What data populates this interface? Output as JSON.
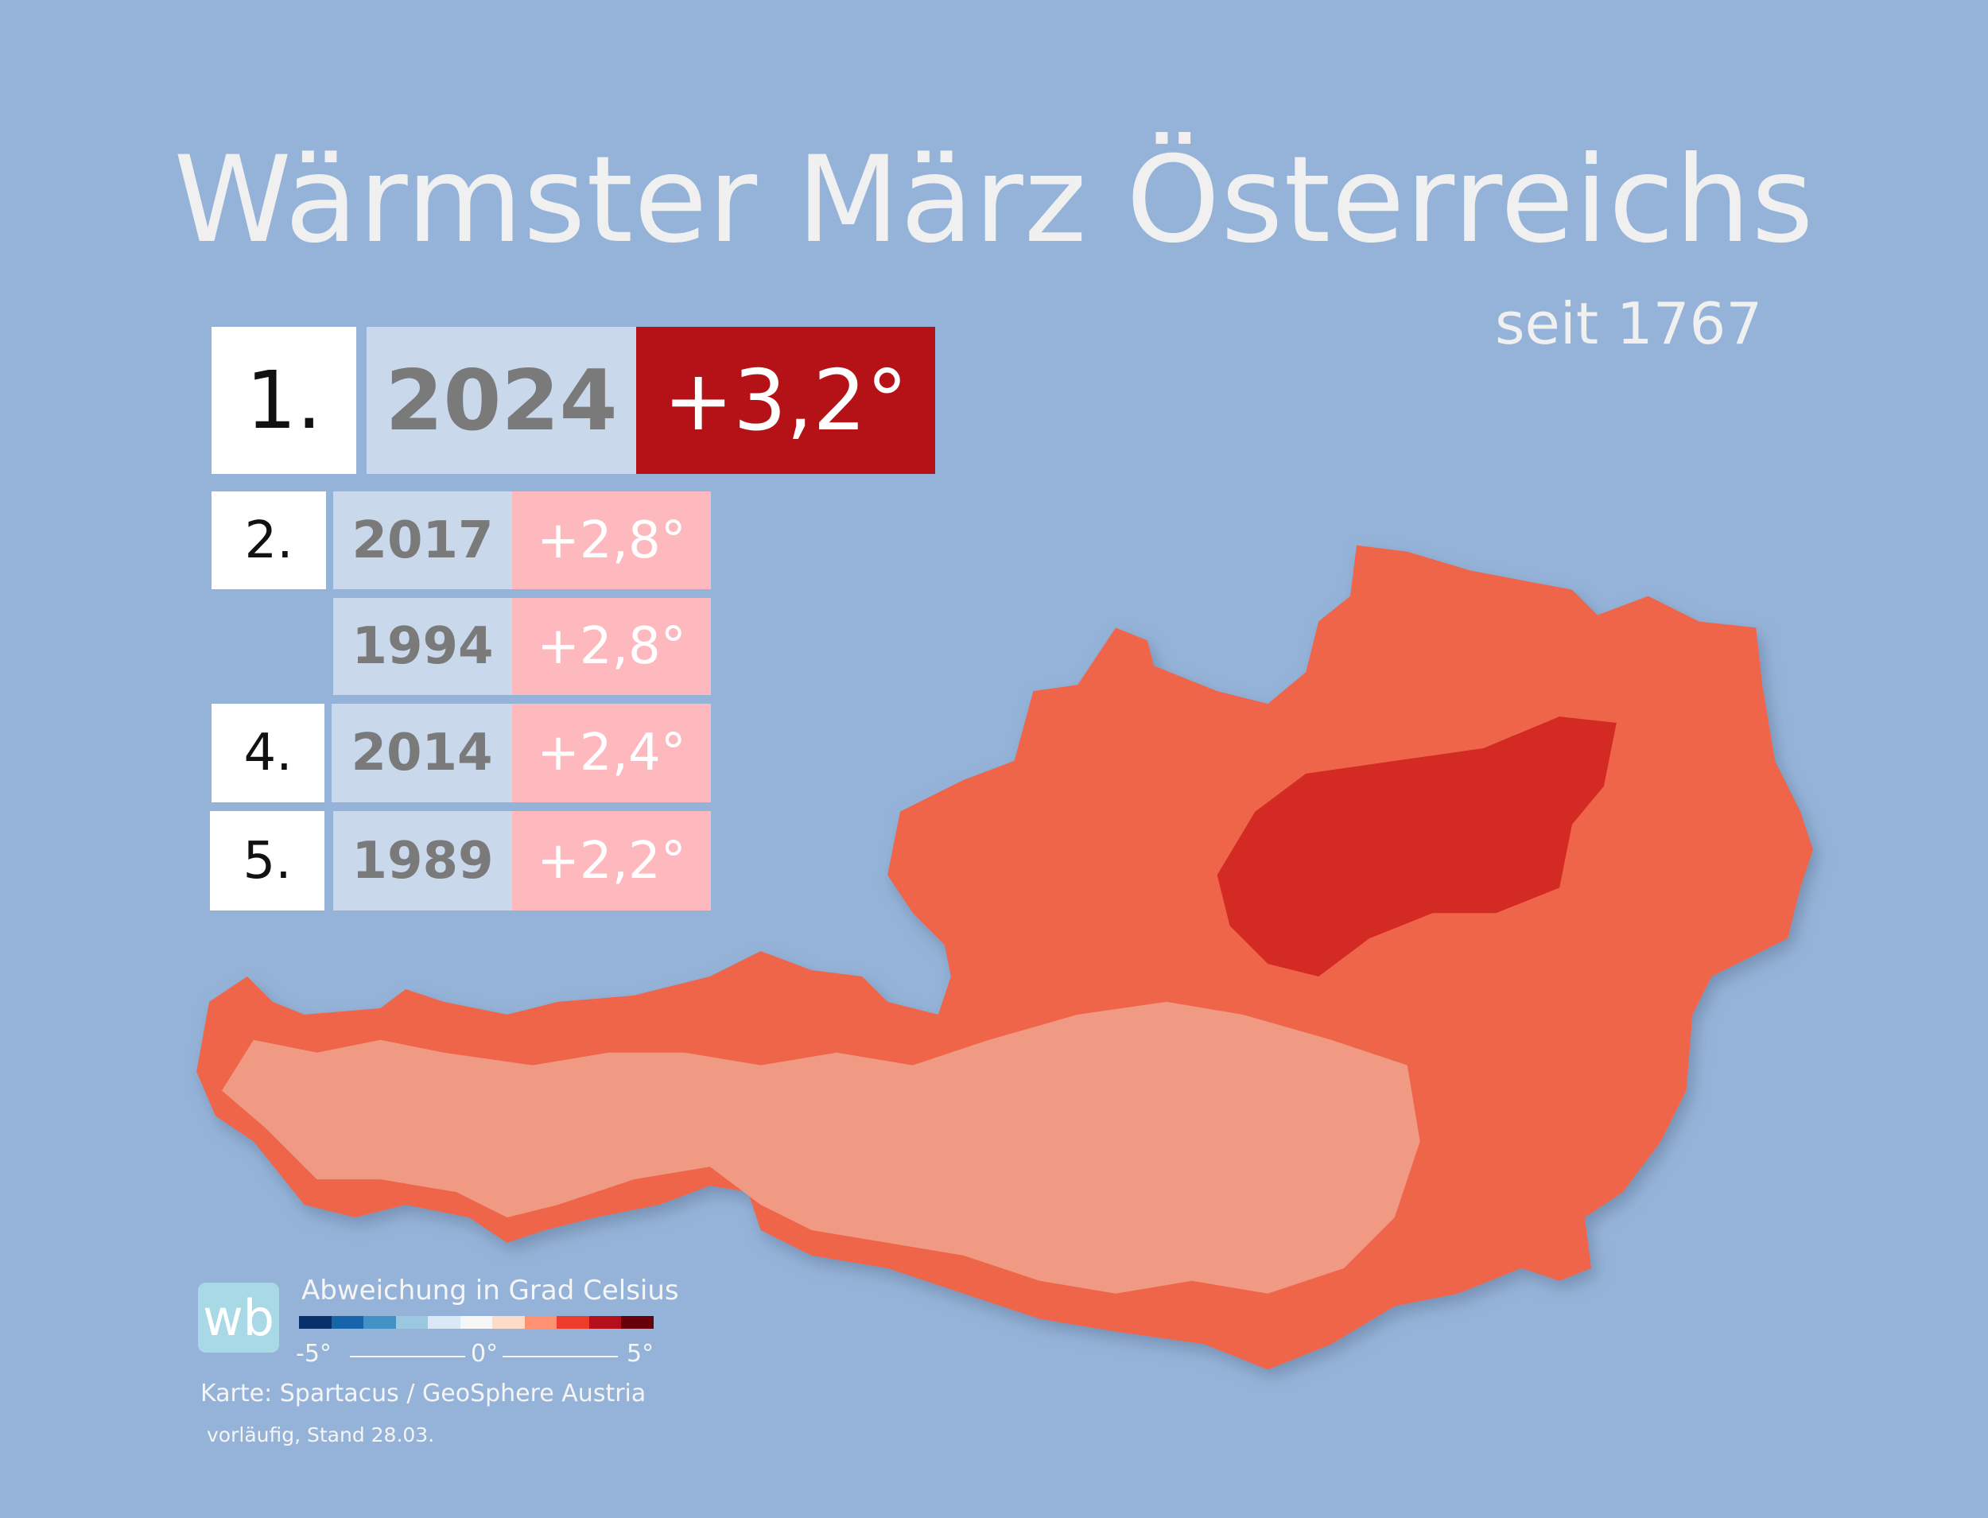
{
  "title": "Wärmster März Österreichs",
  "subtitle": "seit 1767",
  "ranking": [
    {
      "rank": "1.",
      "year": "2024",
      "anomaly": "+3,2°"
    },
    {
      "rank": "2.",
      "year": "2017",
      "anomaly": "+2,8°"
    },
    {
      "rank": "",
      "year": "1994",
      "anomaly": "+2,8°"
    },
    {
      "rank": "4.",
      "year": "2014",
      "anomaly": "+2,4°"
    },
    {
      "rank": "5.",
      "year": "1989",
      "anomaly": "+2,2°"
    }
  ],
  "legend": {
    "logo": "wb",
    "title": "Abweichung in Grad Celsius",
    "min_label": "-5°",
    "mid_label": "0°",
    "max_label": "5°",
    "colors": [
      "#08306b",
      "#1764ab",
      "#4392c6",
      "#9ac8e0",
      "#dbe9f6",
      "#f7f7f7",
      "#fddbc7",
      "#fc9272",
      "#ef3b2c",
      "#b3101b",
      "#67000d"
    ]
  },
  "source": "Karte: Spartacus / GeoSphere Austria",
  "status": "vorläufig, Stand 28.03.",
  "colors": {
    "background": "#95b3d8",
    "map_main": "#ef6549",
    "map_alpine": "#efa089",
    "map_hot": "#d42a24",
    "top_value": "#b51218",
    "value": "#fdb9bd"
  }
}
